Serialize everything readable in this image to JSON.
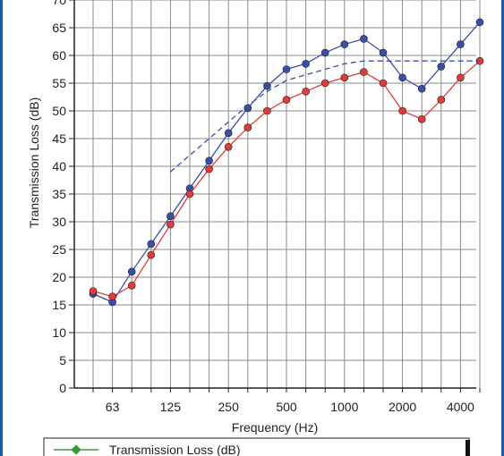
{
  "chart_data": {
    "type": "line",
    "xlabel": "Frequency (Hz)",
    "ylabel": "Transmission Loss (dB)",
    "ylim": [
      0,
      70
    ],
    "y_tick_step": 5,
    "x_scale": "log (1/3 octave bands)",
    "x_bands": [
      50,
      63,
      80,
      100,
      125,
      160,
      200,
      250,
      315,
      400,
      500,
      630,
      800,
      1000,
      1250,
      1600,
      2000,
      2500,
      3150,
      4000,
      5000
    ],
    "x_tick_labels": [
      "63",
      "125",
      "250",
      "500",
      "1000",
      "2000",
      "4000"
    ],
    "grid": true,
    "legend_placement": "bottom",
    "legend_entries": [
      "Transmission Loss (dB)"
    ],
    "series": [
      {
        "color": "#3a4fa8",
        "marker": "circle",
        "line_style": "solid",
        "x": [
          50,
          63,
          80,
          100,
          125,
          160,
          200,
          250,
          315,
          400,
          500,
          630,
          800,
          1000,
          1250,
          1600,
          2000,
          2500,
          3150,
          4000,
          5000
        ],
        "values": [
          17,
          15.5,
          21,
          26,
          31,
          36,
          41,
          46,
          50.5,
          54.5,
          57.5,
          58.5,
          60.5,
          62,
          63,
          60.5,
          56,
          54,
          58,
          62,
          66
        ]
      },
      {
        "color": "#e03c3c",
        "marker": "circle",
        "line_style": "solid",
        "x": [
          50,
          63,
          80,
          100,
          125,
          160,
          200,
          250,
          315,
          400,
          500,
          630,
          800,
          1000,
          1250,
          1600,
          2000,
          2500,
          3150,
          4000,
          5000
        ],
        "values": [
          17.5,
          16.5,
          18.5,
          24,
          29.5,
          35,
          39.5,
          43.5,
          47,
          50,
          52,
          53.5,
          55,
          56,
          57,
          55,
          50,
          48.5,
          52,
          56,
          59
        ]
      },
      {
        "color": "#3a4fa8",
        "marker": "none",
        "line_style": "dashed",
        "x": [
          125,
          160,
          200,
          250,
          315,
          400,
          500,
          630,
          800,
          1000,
          1250,
          1600,
          2000,
          2500,
          3150,
          4000,
          5000
        ],
        "values": [
          39,
          42,
          45,
          48,
          51,
          53.5,
          55.5,
          56.5,
          57.5,
          58.5,
          59,
          59,
          59,
          59,
          59,
          59,
          59
        ]
      }
    ]
  }
}
